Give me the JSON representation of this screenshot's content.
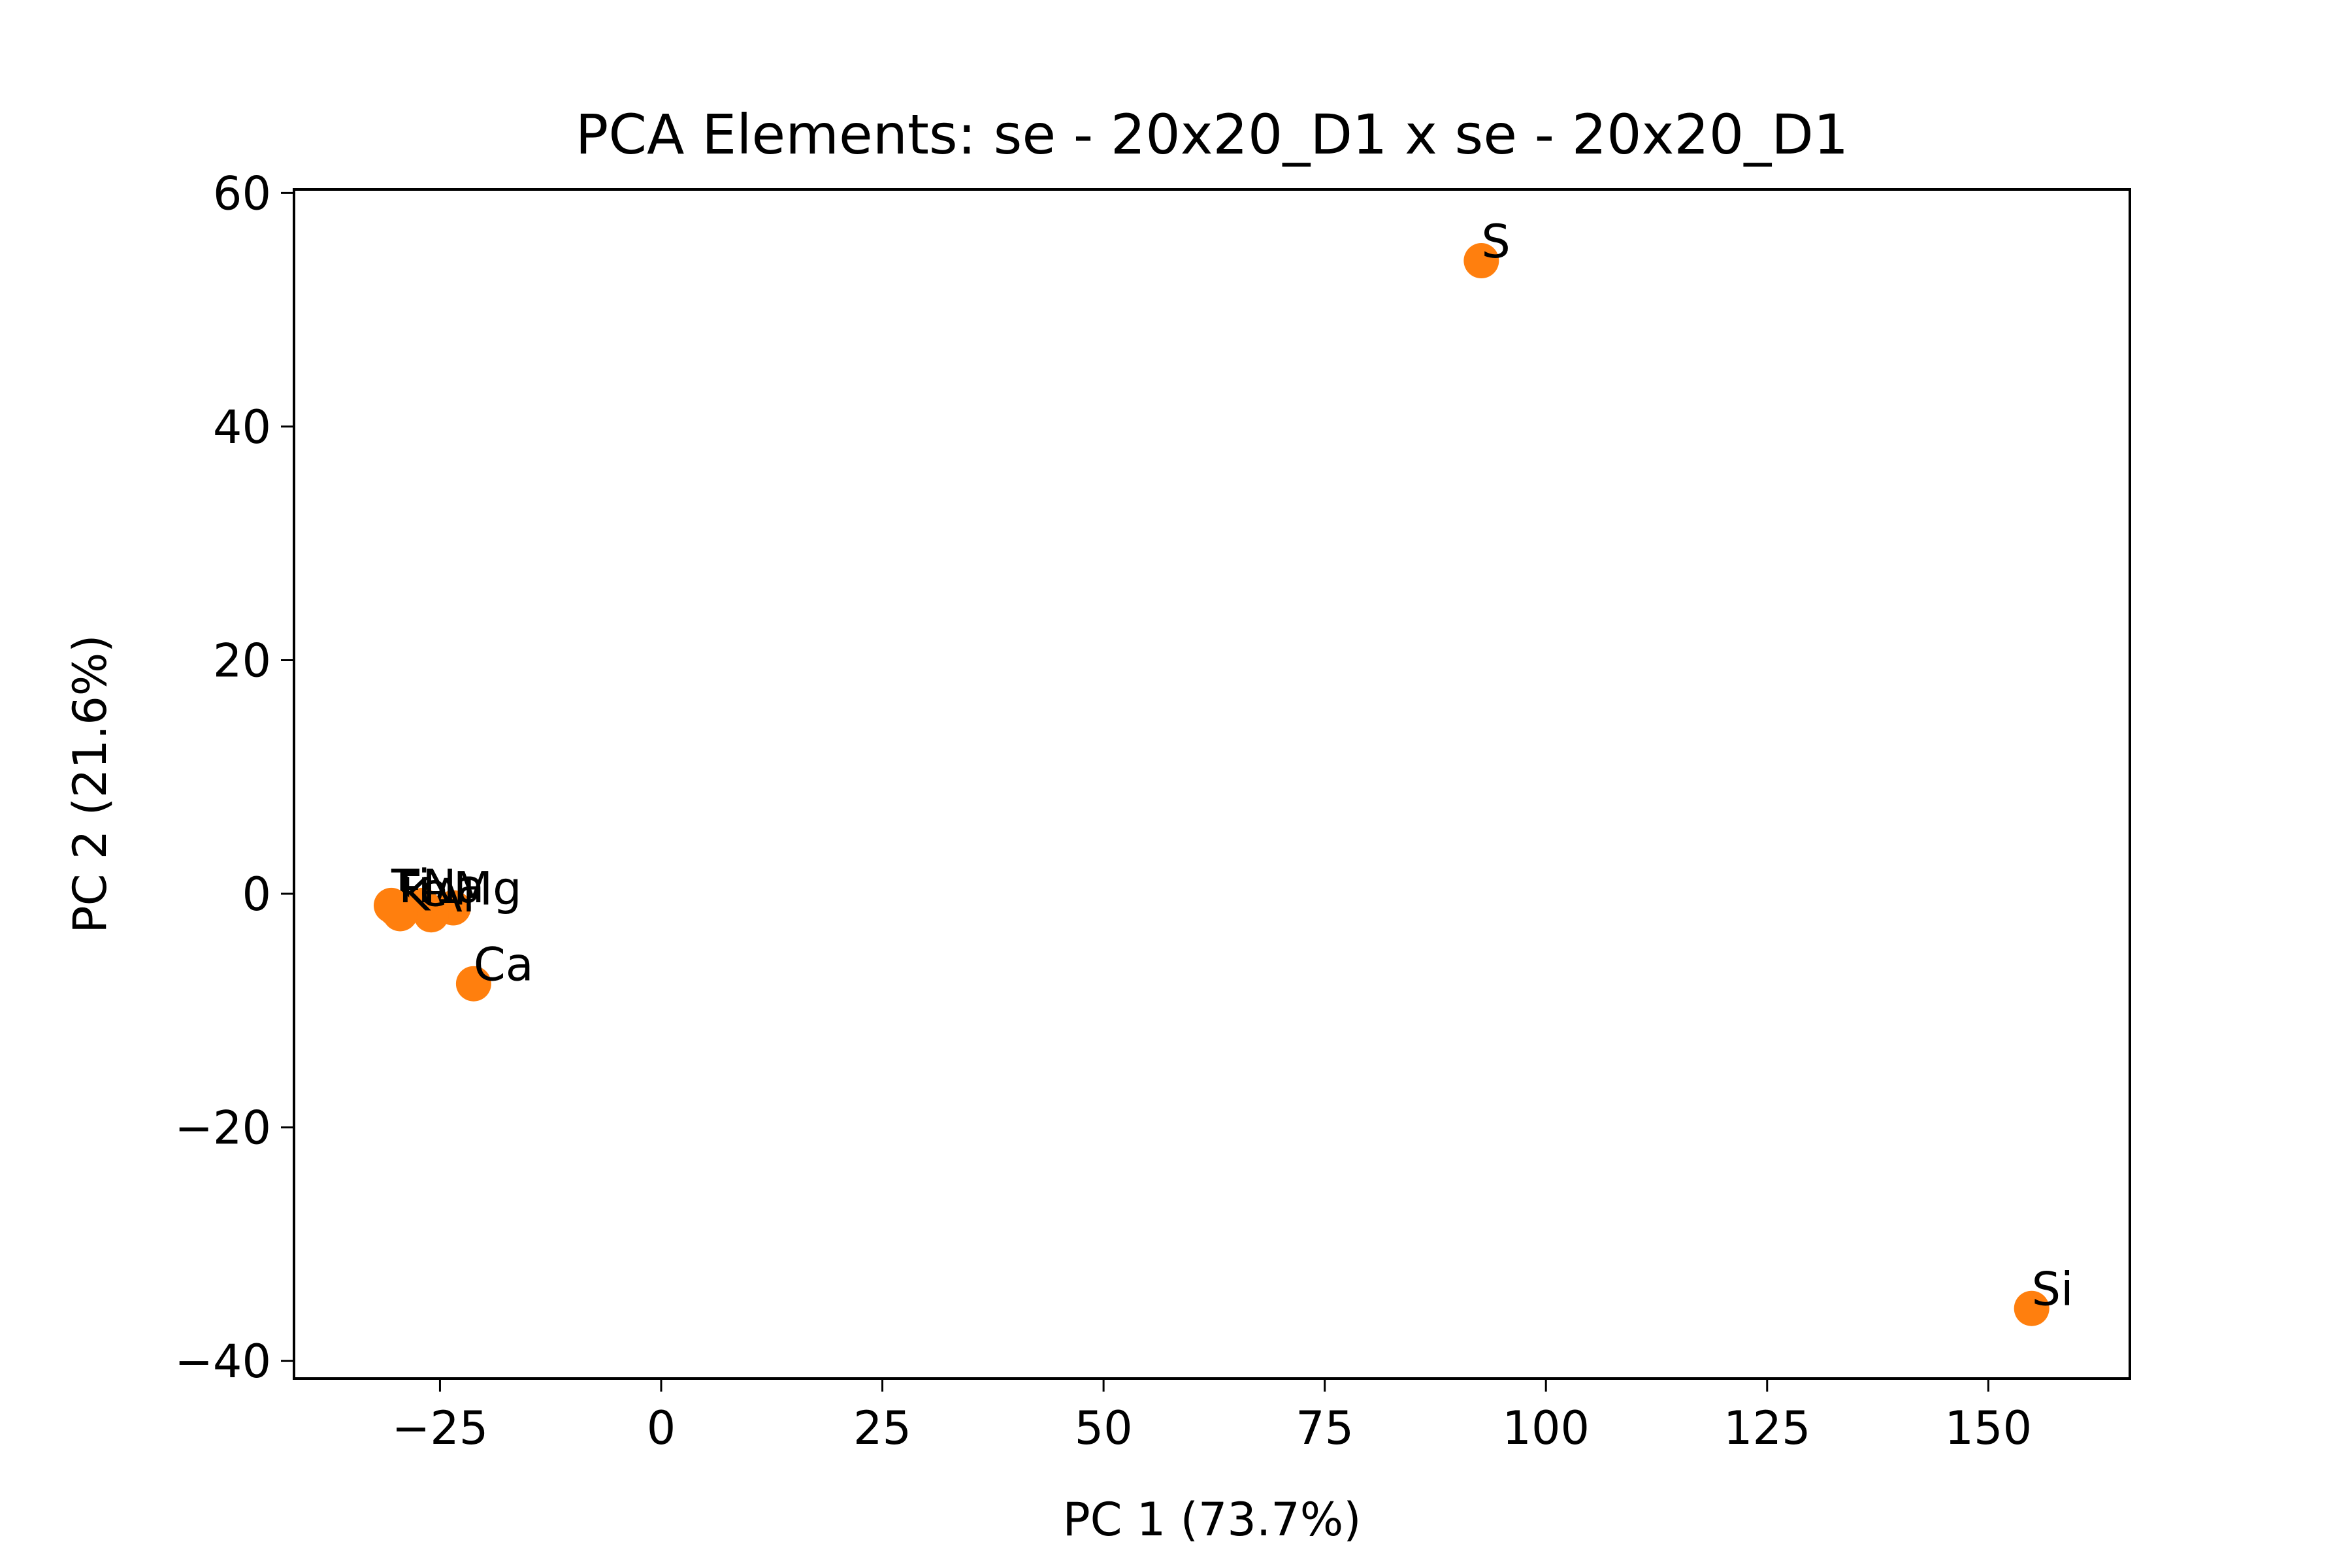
{
  "chart_data": {
    "type": "scatter",
    "title": "PCA Elements: se - 20x20_D1 x se - 20x20_D1",
    "xlabel": "PC 1 (73.7%)",
    "ylabel": "PC 2 (21.6%)",
    "xlim": [
      -41.5,
      166
    ],
    "ylim": [
      -41.5,
      60.3
    ],
    "xticks": [
      -25,
      0,
      25,
      50,
      75,
      100,
      125,
      150
    ],
    "xtick_labels": [
      "−25",
      "0",
      "25",
      "50",
      "75",
      "100",
      "125",
      "150"
    ],
    "yticks": [
      -40,
      -20,
      0,
      20,
      40,
      60
    ],
    "ytick_labels": [
      "−40",
      "−20",
      "0",
      "20",
      "40",
      "60"
    ],
    "grid": false,
    "marker_color": "#ff7f0e",
    "points": [
      {
        "label": "S",
        "x": 92.7,
        "y": 54.2
      },
      {
        "label": "Si",
        "x": 154.9,
        "y": -35.5
      },
      {
        "label": "Ca",
        "x": -21.2,
        "y": -7.7
      },
      {
        "label": "Mg",
        "x": -23.5,
        "y": -1.2
      },
      {
        "label": "Al",
        "x": -26.0,
        "y": -1.8
      },
      {
        "label": "Na",
        "x": -27.0,
        "y": -1.0
      },
      {
        "label": "K",
        "x": -29.5,
        "y": -1.7
      },
      {
        "label": "Fe",
        "x": -30.0,
        "y": -1.3
      },
      {
        "label": "Ti",
        "x": -30.5,
        "y": -1.0
      }
    ]
  }
}
